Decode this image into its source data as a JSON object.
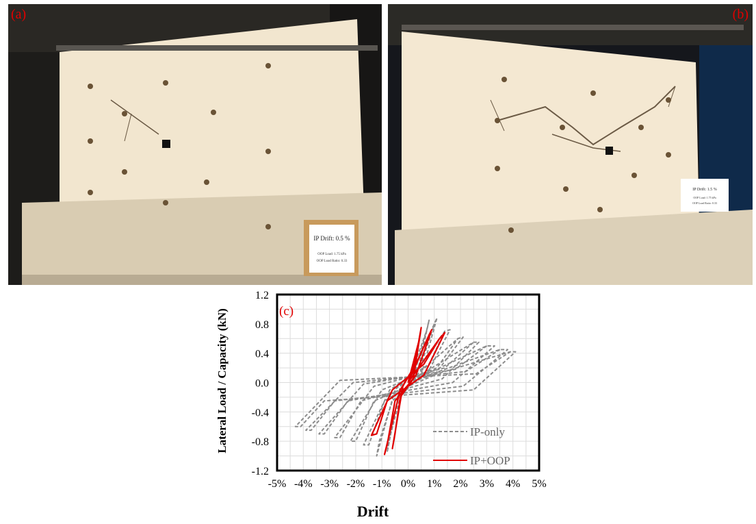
{
  "panels": {
    "a": {
      "label": "(a)",
      "placard": {
        "title": "IP Drift: 0.5 %",
        "line1": "OOP Load: 1.75 kPa",
        "line2": "OOP Load Ratio: 0.33"
      }
    },
    "b": {
      "label": "(b)",
      "placard": {
        "title": "IP Drift: 1.5 %",
        "line1": "OOP Load: 1.75 kPa",
        "line2": "OOP Load Ratio: 0.33"
      }
    },
    "c": {
      "label": "(c)"
    }
  },
  "colors": {
    "ip_only": "#8c8c8c",
    "ip_oop": "#e00000",
    "panel_label": "#e00000"
  },
  "chart_data": {
    "type": "line",
    "xlabel": "Drift",
    "ylabel": "Lateral Load / Capacity (kN)",
    "x_ticks": [
      "-5%",
      "-4%",
      "-3%",
      "-2%",
      "-1%",
      "0%",
      "1%",
      "2%",
      "3%",
      "4%",
      "5%"
    ],
    "y_ticks": [
      "-1.2",
      "-0.8",
      "-0.4",
      "0.0",
      "0.4",
      "0.8",
      "1.2"
    ],
    "xlim": [
      -5,
      5
    ],
    "ylim": [
      -1.2,
      1.2
    ],
    "grid": true,
    "legend_position": "bottom-right",
    "series": [
      {
        "name": "IP-only",
        "style": "dashed",
        "color": "#8c8c8c",
        "loops": [
          {
            "x": [
              0,
              0.7,
              0.8,
              0.3,
              -0.3,
              -0.7,
              -0.8,
              -0.3,
              0.3,
              0.7
            ],
            "y": [
              0,
              0.7,
              0.85,
              0.05,
              -0.2,
              -0.75,
              -0.95,
              -0.05,
              0.2,
              0.7
            ]
          },
          {
            "x": [
              0,
              1.0,
              1.1,
              0.5,
              -0.6,
              -1.1,
              -1.2,
              -0.5,
              0.5,
              1.0
            ],
            "y": [
              0,
              0.8,
              0.88,
              0.1,
              -0.25,
              -0.8,
              -1.0,
              -0.1,
              0.25,
              0.8
            ]
          },
          {
            "x": [
              0,
              1.4,
              1.6,
              0.7,
              -0.9,
              -1.5,
              -1.7,
              -0.7,
              0.8,
              1.4
            ],
            "y": [
              0,
              0.7,
              0.72,
              0.1,
              -0.25,
              -0.85,
              -0.85,
              -0.1,
              0.25,
              0.7
            ]
          },
          {
            "x": [
              0,
              1.9,
              2.1,
              1.0,
              -1.3,
              -2.0,
              -2.2,
              -1.0,
              1.1,
              1.9
            ],
            "y": [
              0,
              0.6,
              0.62,
              0.1,
              -0.25,
              -0.8,
              -0.8,
              -0.1,
              0.2,
              0.6
            ]
          },
          {
            "x": [
              0,
              2.5,
              2.7,
              1.3,
              -1.8,
              -2.6,
              -2.8,
              -1.3,
              1.4,
              2.5
            ],
            "y": [
              0,
              0.55,
              0.55,
              0.05,
              -0.25,
              -0.75,
              -0.75,
              -0.05,
              0.2,
              0.55
            ]
          },
          {
            "x": [
              0,
              3.0,
              3.3,
              1.7,
              -2.3,
              -3.2,
              -3.4,
              -1.7,
              1.8,
              3.0
            ],
            "y": [
              0,
              0.5,
              0.5,
              0.0,
              -0.25,
              -0.7,
              -0.7,
              -0.02,
              0.18,
              0.5
            ]
          },
          {
            "x": [
              0,
              3.5,
              3.8,
              2.1,
              -2.8,
              -3.7,
              -3.9,
              -2.1,
              2.2,
              3.5
            ],
            "y": [
              0,
              0.45,
              0.45,
              -0.05,
              -0.25,
              -0.65,
              -0.65,
              0.0,
              0.15,
              0.45
            ]
          },
          {
            "x": [
              0,
              3.9,
              4.1,
              2.5,
              -3.2,
              -4.1,
              -4.3,
              -2.6,
              2.6,
              3.9
            ],
            "y": [
              0,
              0.42,
              0.42,
              -0.1,
              -0.25,
              -0.6,
              -0.6,
              0.03,
              0.12,
              0.42
            ]
          }
        ]
      },
      {
        "name": "IP+OOP",
        "style": "solid",
        "color": "#e00000",
        "loops": [
          {
            "x": [
              0,
              0.4,
              0.5,
              0.2,
              -0.3,
              -0.5,
              -0.6,
              -0.2,
              0.2,
              0.4
            ],
            "y": [
              0,
              0.55,
              0.75,
              0.05,
              -0.2,
              -0.7,
              -0.9,
              -0.05,
              0.2,
              0.55
            ]
          },
          {
            "x": [
              0,
              0.8,
              0.9,
              0.3,
              -0.5,
              -0.8,
              -0.9,
              -0.3,
              0.3,
              0.8
            ],
            "y": [
              0,
              0.65,
              0.72,
              0.1,
              -0.25,
              -0.85,
              -0.98,
              -0.1,
              0.25,
              0.65
            ]
          },
          {
            "x": [
              0,
              1.2,
              1.4,
              0.6,
              -0.8,
              -1.2,
              -1.4,
              -0.6,
              0.6,
              1.2
            ],
            "y": [
              0,
              0.6,
              0.68,
              0.1,
              -0.25,
              -0.7,
              -0.72,
              -0.1,
              0.25,
              0.6
            ]
          }
        ]
      }
    ]
  }
}
